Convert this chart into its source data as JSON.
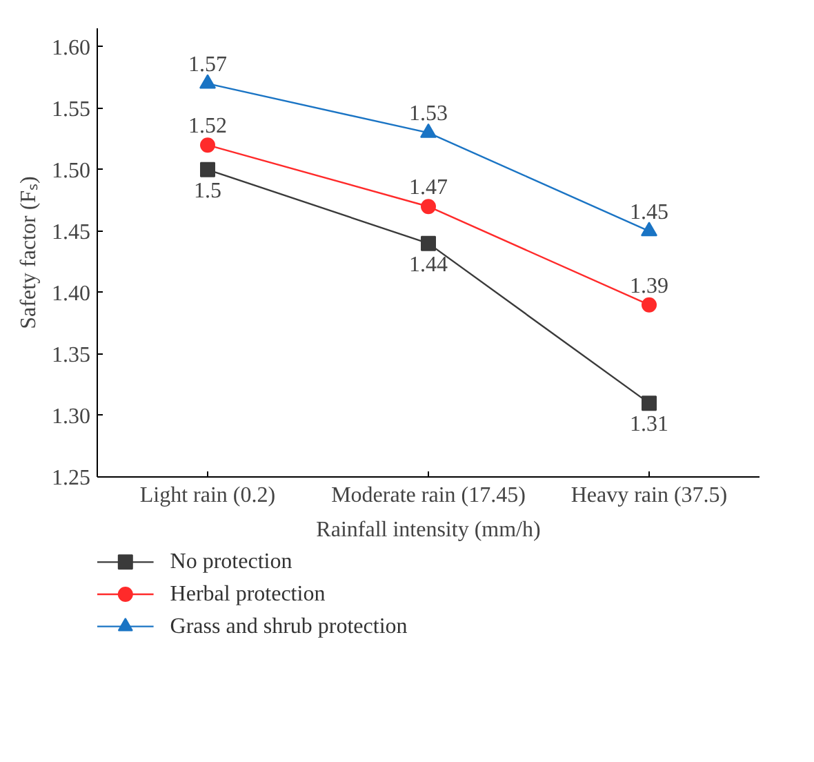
{
  "chart_data": {
    "type": "line",
    "xlabel": "Rainfall intensity (mm/h)",
    "ylabel": "Safety factor (Fₛ)",
    "categories": [
      "Light rain (0.2)",
      "Moderate rain (17.45)",
      "Heavy rain (37.5)"
    ],
    "series": [
      {
        "name": "No protection",
        "color": "#3a3a3a",
        "marker": "square",
        "values": [
          1.5,
          1.44,
          1.31
        ]
      },
      {
        "name": "Herbal protection",
        "color": "#ff2a2a",
        "marker": "circle",
        "values": [
          1.52,
          1.47,
          1.39
        ]
      },
      {
        "name": "Grass and shrub protection",
        "color": "#1a74c4",
        "marker": "triangle",
        "values": [
          1.57,
          1.53,
          1.45
        ]
      }
    ],
    "ylim": [
      1.25,
      1.615
    ],
    "yticks": [
      1.25,
      {
        "value": 1.3,
        "label": "1.30"
      },
      1.35,
      {
        "value": 1.4,
        "label": "1.40"
      },
      1.45,
      {
        "value": 1.5,
        "label": "1.50"
      },
      1.55,
      {
        "value": 1.6,
        "label": "1.60"
      }
    ],
    "data_labels": true,
    "grid": false,
    "legend": "bottom",
    "line_style": "solid"
  }
}
